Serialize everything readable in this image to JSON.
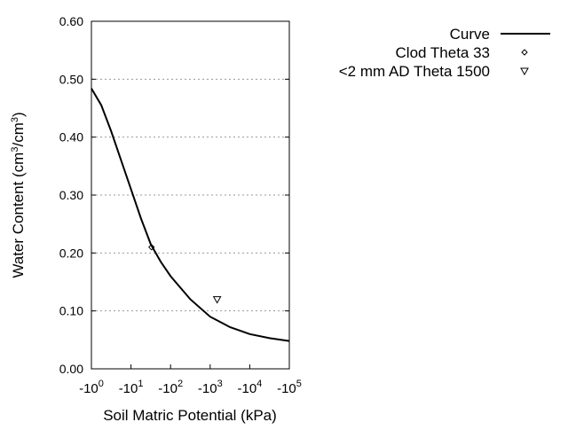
{
  "chart_data": {
    "type": "line",
    "title": "",
    "xlabel": "Soil Matric Potential (kPa)",
    "ylabel": "Water Content (cm3/cm3)",
    "xscale": "log (negative values)",
    "xlim": [
      -1,
      -100000
    ],
    "ylim": [
      0,
      0.6
    ],
    "grid": "horizontal dotted",
    "legend_placement": "outside top-right",
    "x_tick_labels": [
      {
        "base": "-10",
        "exp": "0"
      },
      {
        "base": "-10",
        "exp": "1"
      },
      {
        "base": "-10",
        "exp": "2"
      },
      {
        "base": "-10",
        "exp": "3"
      },
      {
        "base": "-10",
        "exp": "4"
      },
      {
        "base": "-10",
        "exp": "5"
      }
    ],
    "x_ticks": [
      -1,
      -10,
      -100,
      -1000,
      -10000,
      -100000
    ],
    "y_ticks": [
      0,
      0.1,
      0.2,
      0.3,
      0.4,
      0.5,
      0.6
    ],
    "y_tick_labels": [
      "0.00",
      "0.10",
      "0.20",
      "0.30",
      "0.40",
      "0.50",
      "0.60"
    ],
    "series": [
      {
        "name": "Curve",
        "kind": "line",
        "color": "#000000",
        "x": [
          -1,
          -1.778,
          -3.162,
          -5.623,
          -10,
          -17.78,
          -31.62,
          -56.23,
          -100,
          -316.2,
          -1000,
          -3162,
          -10000,
          -31623,
          -100000
        ],
        "y": [
          0.484,
          0.455,
          0.41,
          0.36,
          0.31,
          0.26,
          0.215,
          0.185,
          0.16,
          0.12,
          0.09,
          0.072,
          0.06,
          0.053,
          0.048
        ]
      },
      {
        "name": "Clod Theta 33",
        "kind": "marker",
        "marker": "diamond",
        "x": [
          -33
        ],
        "y": [
          0.21
        ]
      },
      {
        "name": "<2 mm AD Theta 1500",
        "kind": "marker",
        "marker": "triangle-down",
        "x": [
          -1500
        ],
        "y": [
          0.12
        ]
      }
    ]
  }
}
